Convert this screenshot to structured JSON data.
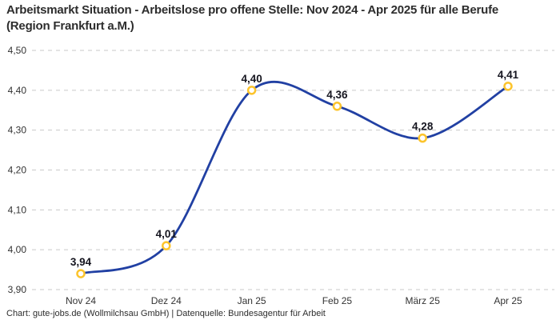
{
  "title": "Arbeitsmarkt Situation - Arbeitslose pro offene Stelle: Nov 2024 - Apr 2025 für alle Berufe (Region Frankfurt a.M.)",
  "footer": "Chart: gute-jobs.de (Wollmilchsau GmbH) | Datenquelle: Bundesagentur für Arbeit",
  "chart_data": {
    "type": "line",
    "title": "Arbeitsmarkt Situation - Arbeitslose pro offene Stelle: Nov 2024 - Apr 2025 für alle Berufe (Region Frankfurt a.M.)",
    "categories": [
      "Nov 24",
      "Dez 24",
      "Jan 25",
      "Feb 25",
      "März 25",
      "Apr 25"
    ],
    "values": [
      3.94,
      4.01,
      4.4,
      4.36,
      4.28,
      4.41
    ],
    "value_labels": [
      "3,94",
      "4,01",
      "4,40",
      "4,36",
      "4,28",
      "4,41"
    ],
    "y_tick_labels": [
      "4,50",
      "4,40",
      "4,30",
      "4,20",
      "4,10",
      "4,00",
      "3,90"
    ],
    "y_tick_values": [
      4.5,
      4.4,
      4.3,
      4.2,
      4.1,
      4.0,
      3.9
    ],
    "ylim": [
      3.9,
      4.5
    ],
    "xlabel": "",
    "ylabel": "",
    "legend": "none",
    "grid": "horizontal-dashed",
    "curve": "smooth-spline",
    "colors": {
      "line": "#2140a3",
      "marker_stroke": "#fcc42c",
      "marker_fill": "#ffffff",
      "grid": "#c9c9c9",
      "value_label": "#15151f",
      "tick_label": "#333333",
      "title": "#2d2d2d",
      "footer": "#2d2d2d",
      "background": "#ffffff"
    }
  }
}
